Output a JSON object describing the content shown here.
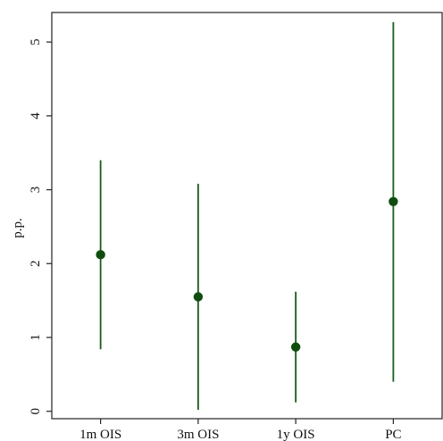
{
  "chart_data": {
    "type": "scatter",
    "subtype": "point-with-interval",
    "title": "",
    "xlabel": "",
    "ylabel": "p.p.",
    "categories": [
      "1m OIS",
      "3m OIS",
      "1y OIS",
      "PC"
    ],
    "estimates": [
      2.12,
      1.55,
      0.87,
      2.84
    ],
    "lower": [
      0.84,
      0.02,
      0.12,
      0.4
    ],
    "upper": [
      3.4,
      3.08,
      1.62,
      5.27
    ],
    "ylim": [
      -0.1,
      5.4
    ],
    "yticks": [
      0,
      1,
      2,
      3,
      4,
      5
    ],
    "ytick_labels": [
      "0",
      "1",
      "2",
      "3",
      "4",
      "5"
    ],
    "grid": false,
    "legend": "none",
    "color": "#1a5c1a",
    "marker_color": "#0f4d0f"
  }
}
